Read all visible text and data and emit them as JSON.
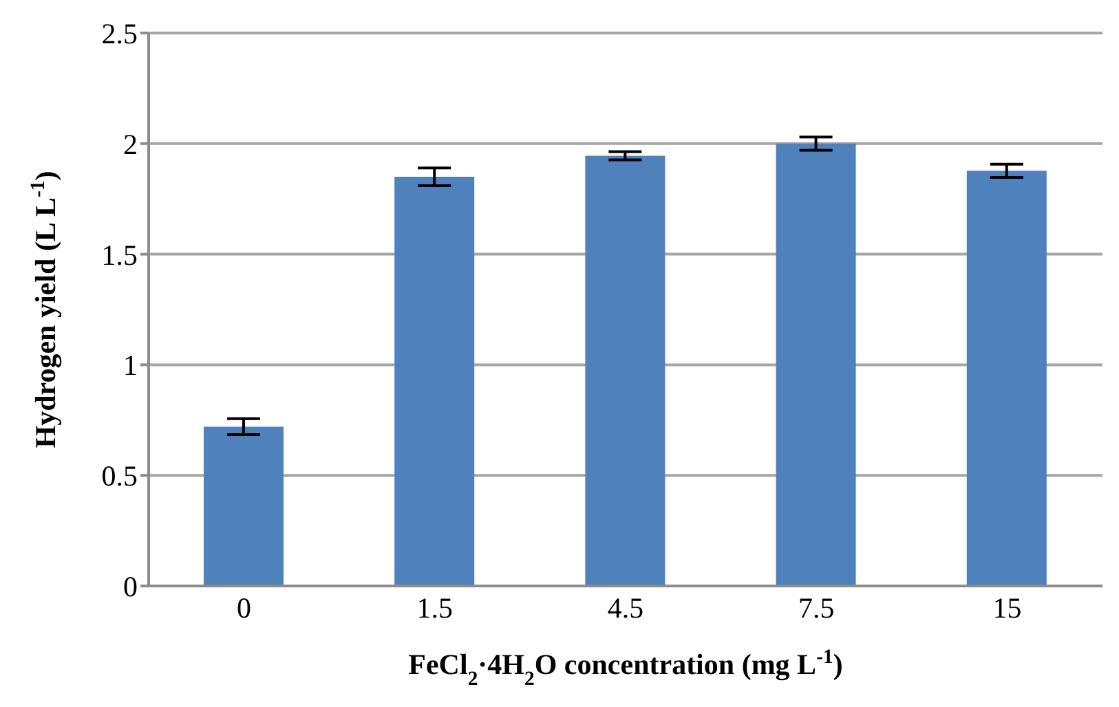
{
  "chart_data": {
    "type": "bar",
    "xlabel": "FeCl$_{2}$·4H$_{2}$O concentration (mg L$^{-1}$)",
    "ylabel": "Hydrogen yield (L L$^{-1}$)",
    "categories": [
      "0",
      "1.5",
      "4.5",
      "7.5",
      "15"
    ],
    "values": [
      0.72,
      1.85,
      1.945,
      2.0,
      1.877
    ],
    "errors": [
      0.036,
      0.04,
      0.019,
      0.03,
      0.03
    ],
    "color": "#4f81bd",
    "ylim": [
      0,
      2.5
    ],
    "yticks": [
      0,
      0.5,
      1,
      1.5,
      2,
      2.5
    ],
    "grid": "y"
  }
}
